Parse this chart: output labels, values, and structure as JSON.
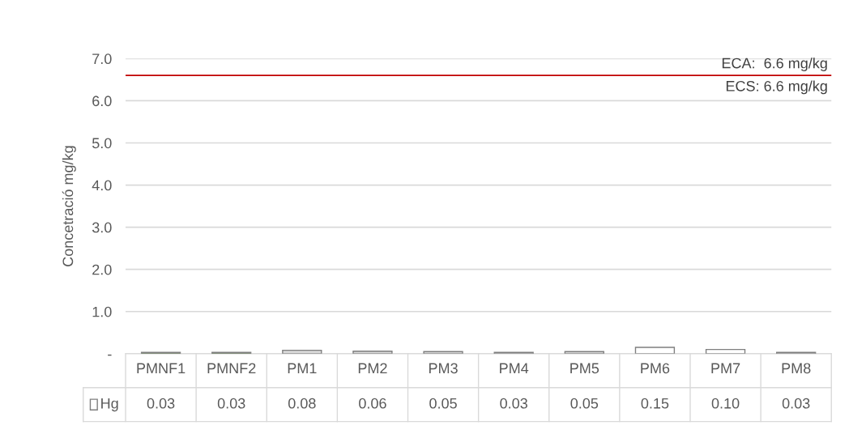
{
  "chart_data": {
    "type": "bar",
    "ylabel": "Concetració mg/kg",
    "categories": [
      "PMNF1",
      "PMNF2",
      "PM1",
      "PM2",
      "PM3",
      "PM4",
      "PM5",
      "PM6",
      "PM7",
      "PM8"
    ],
    "series": [
      {
        "name": "Hg",
        "color": "#ffffff",
        "colors": [
          "#548235",
          "#548235",
          "#d9d9d9",
          "#d9d9d9",
          "#d9d9d9",
          "#d9d9d9",
          "#d9d9d9",
          "#ffffff",
          "#ffffff",
          "#d9d9d9"
        ],
        "values": [
          0.03,
          0.03,
          0.08,
          0.06,
          0.05,
          0.03,
          0.05,
          0.15,
          0.1,
          0.03
        ],
        "value_labels": [
          "0.03",
          "0.03",
          "0.08",
          "0.06",
          "0.05",
          "0.03",
          "0.05",
          "0.15",
          "0.10",
          "0.03"
        ]
      }
    ],
    "ylim": [
      0,
      7
    ],
    "yticks": [
      {
        "value": 0,
        "label": "-"
      },
      {
        "value": 1,
        "label": "1.0"
      },
      {
        "value": 2,
        "label": "2.0"
      },
      {
        "value": 3,
        "label": "3.0"
      },
      {
        "value": 4,
        "label": "4.0"
      },
      {
        "value": 5,
        "label": "5.0"
      },
      {
        "value": 6,
        "label": "6.0"
      },
      {
        "value": 7,
        "label": "7.0"
      }
    ],
    "grid": "y",
    "ref_lines": [
      {
        "axis": "y",
        "value": 6.6,
        "label": "ECA:  6.6 mg/kg",
        "color": "#c00000"
      }
    ],
    "annotations": [
      {
        "text": "ECS: 6.6 mg/kg",
        "y": 6.6
      }
    ]
  }
}
